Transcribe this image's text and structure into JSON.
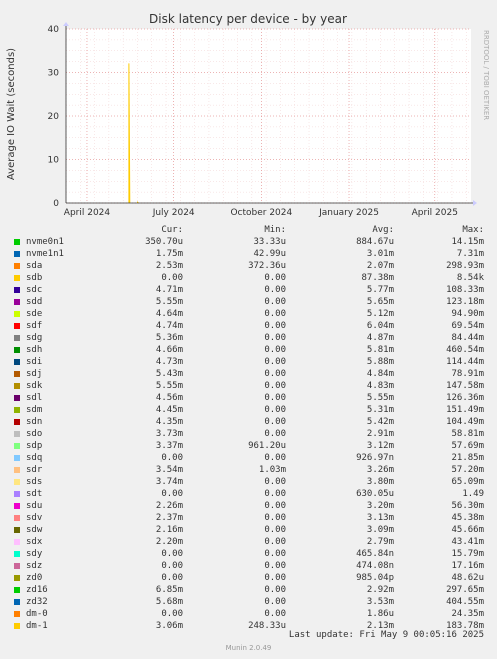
{
  "chart_data": {
    "type": "line",
    "title": "Disk latency per device - by year",
    "ylabel": "Average IO Wait (seconds)",
    "side_label": "RRDTOOL / TOBI OETIKER",
    "ylim": [
      0,
      40
    ],
    "yticks": [
      "0",
      "10",
      "20",
      "30",
      "40"
    ],
    "xticks": [
      {
        "label": "April 2024",
        "date": "2024-04-01"
      },
      {
        "label": "July 2024",
        "date": "2024-07-01"
      },
      {
        "label": "October 2024",
        "date": "2024-10-01"
      },
      {
        "label": "January 2025",
        "date": "2025-01-01"
      },
      {
        "label": "April 2025",
        "date": "2025-04-01"
      }
    ],
    "xrange": [
      "2024-03-10",
      "2025-05-09"
    ],
    "grid": true,
    "series": [
      {
        "name": "sdb",
        "points": [
          {
            "x": "2024-05-15",
            "y": 0
          },
          {
            "x": "2024-05-15",
            "y": 32.1
          },
          {
            "x": "2024-05-16",
            "y": 0
          }
        ]
      },
      {
        "name": "dm-1",
        "points": [
          {
            "x": "2024-05-24",
            "y": 0
          },
          {
            "x": "2024-05-24",
            "y": 0.18
          },
          {
            "x": "2024-05-25",
            "y": 0
          }
        ]
      }
    ],
    "legend": {
      "headers": [
        "Cur:",
        "Min:",
        "Avg:",
        "Max:"
      ],
      "rows": [
        {
          "name": "nvme0n1",
          "color": "#00cc00",
          "cur": "350.70u",
          "min": "33.33u",
          "avg": "884.67u",
          "max": "14.15m"
        },
        {
          "name": "nvme1n1",
          "color": "#0066b3",
          "cur": "1.75m",
          "min": "42.99u",
          "avg": "3.01m",
          "max": "7.31m"
        },
        {
          "name": "sda",
          "color": "#ff8000",
          "cur": "2.53m",
          "min": "372.36u",
          "avg": "2.07m",
          "max": "298.93m"
        },
        {
          "name": "sdb",
          "color": "#ffcc00",
          "cur": "0.00",
          "min": "0.00",
          "avg": "87.38m",
          "max": "8.54k"
        },
        {
          "name": "sdc",
          "color": "#330099",
          "cur": "4.71m",
          "min": "0.00",
          "avg": "5.77m",
          "max": "108.33m"
        },
        {
          "name": "sdd",
          "color": "#990099",
          "cur": "5.55m",
          "min": "0.00",
          "avg": "5.65m",
          "max": "123.18m"
        },
        {
          "name": "sde",
          "color": "#ccff00",
          "cur": "4.64m",
          "min": "0.00",
          "avg": "5.12m",
          "max": "94.90m"
        },
        {
          "name": "sdf",
          "color": "#ff0000",
          "cur": "4.74m",
          "min": "0.00",
          "avg": "6.04m",
          "max": "69.54m"
        },
        {
          "name": "sdg",
          "color": "#808080",
          "cur": "5.36m",
          "min": "0.00",
          "avg": "4.87m",
          "max": "84.44m"
        },
        {
          "name": "sdh",
          "color": "#008f00",
          "cur": "4.66m",
          "min": "0.00",
          "avg": "5.81m",
          "max": "460.54m"
        },
        {
          "name": "sdi",
          "color": "#00487d",
          "cur": "4.73m",
          "min": "0.00",
          "avg": "5.88m",
          "max": "114.44m"
        },
        {
          "name": "sdj",
          "color": "#b35a00",
          "cur": "5.43m",
          "min": "0.00",
          "avg": "4.84m",
          "max": "78.91m"
        },
        {
          "name": "sdk",
          "color": "#b38f00",
          "cur": "5.55m",
          "min": "0.00",
          "avg": "4.83m",
          "max": "147.58m"
        },
        {
          "name": "sdl",
          "color": "#6b006b",
          "cur": "4.56m",
          "min": "0.00",
          "avg": "5.55m",
          "max": "126.36m"
        },
        {
          "name": "sdm",
          "color": "#8fb300",
          "cur": "4.45m",
          "min": "0.00",
          "avg": "5.31m",
          "max": "151.49m"
        },
        {
          "name": "sdn",
          "color": "#b30000",
          "cur": "4.35m",
          "min": "0.00",
          "avg": "5.42m",
          "max": "104.49m"
        },
        {
          "name": "sdo",
          "color": "#bebebe",
          "cur": "3.73m",
          "min": "0.00",
          "avg": "2.91m",
          "max": "58.81m"
        },
        {
          "name": "sdp",
          "color": "#80ff80",
          "cur": "3.37m",
          "min": "961.20u",
          "avg": "3.12m",
          "max": "57.69m"
        },
        {
          "name": "sdq",
          "color": "#80c9ff",
          "cur": "0.00",
          "min": "0.00",
          "avg": "926.97n",
          "max": "21.85m"
        },
        {
          "name": "sdr",
          "color": "#ffc080",
          "cur": "3.54m",
          "min": "1.03m",
          "avg": "3.26m",
          "max": "57.20m"
        },
        {
          "name": "sds",
          "color": "#ffe680",
          "cur": "3.74m",
          "min": "0.00",
          "avg": "3.80m",
          "max": "65.09m"
        },
        {
          "name": "sdt",
          "color": "#aa80ff",
          "cur": "0.00",
          "min": "0.00",
          "avg": "630.05u",
          "max": "1.49"
        },
        {
          "name": "sdu",
          "color": "#ee00cc",
          "cur": "2.26m",
          "min": "0.00",
          "avg": "3.20m",
          "max": "56.30m"
        },
        {
          "name": "sdv",
          "color": "#ff8080",
          "cur": "2.37m",
          "min": "0.00",
          "avg": "3.13m",
          "max": "45.38m"
        },
        {
          "name": "sdw",
          "color": "#666600",
          "cur": "2.16m",
          "min": "0.00",
          "avg": "3.09m",
          "max": "45.66m"
        },
        {
          "name": "sdx",
          "color": "#ffbfff",
          "cur": "2.20m",
          "min": "0.00",
          "avg": "2.79m",
          "max": "43.41m"
        },
        {
          "name": "sdy",
          "color": "#00ffcc",
          "cur": "0.00",
          "min": "0.00",
          "avg": "465.84n",
          "max": "15.79m"
        },
        {
          "name": "sdz",
          "color": "#cc6699",
          "cur": "0.00",
          "min": "0.00",
          "avg": "474.08n",
          "max": "17.16m"
        },
        {
          "name": "zd0",
          "color": "#999900",
          "cur": "0.00",
          "min": "0.00",
          "avg": "985.04p",
          "max": "48.62u"
        },
        {
          "name": "zd16",
          "color": "#00cc00",
          "cur": "6.85m",
          "min": "0.00",
          "avg": "2.92m",
          "max": "297.65m"
        },
        {
          "name": "zd32",
          "color": "#0066b3",
          "cur": "5.68m",
          "min": "0.00",
          "avg": "3.53m",
          "max": "404.55m"
        },
        {
          "name": "dm-0",
          "color": "#ff8000",
          "cur": "0.00",
          "min": "0.00",
          "avg": "1.86u",
          "max": "24.35m"
        },
        {
          "name": "dm-1",
          "color": "#ffcc00",
          "cur": "3.06m",
          "min": "248.33u",
          "avg": "2.13m",
          "max": "183.78m"
        }
      ]
    }
  },
  "footer": {
    "last_update": "Last update: Fri May  9 00:05:16 2025",
    "version": "Munin 2.0.49"
  }
}
